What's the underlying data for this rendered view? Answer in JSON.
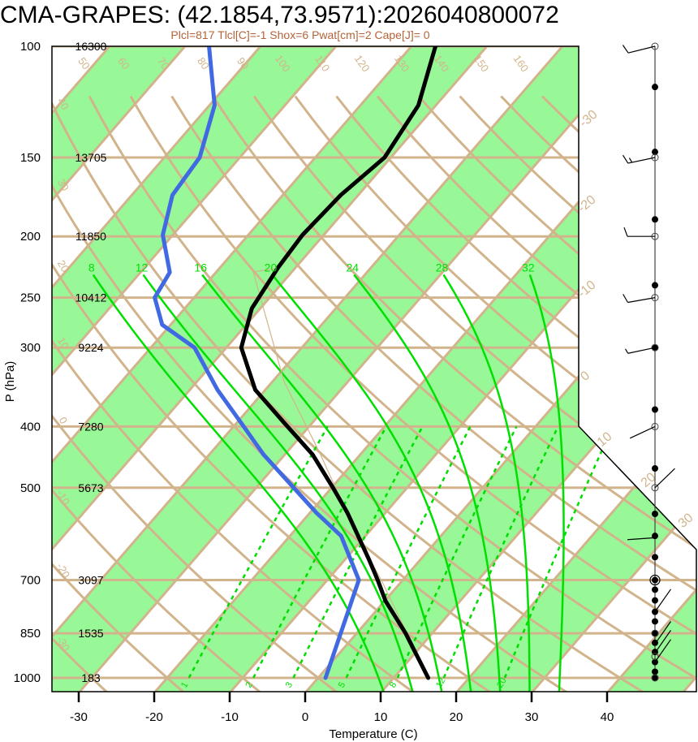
{
  "title": "CMA-GRAPES: (42.1854,73.9571):2026040800072",
  "subtitle": "Plcl=817 Tlcl[C]=-1 Shox=6 Pwat[cm]=2 Cape[J]= 0",
  "colors": {
    "band_green": "#98F898",
    "grid_tan": "#D2B48C",
    "moist_green": "#00E000",
    "temperature": "#000000",
    "dewpoint": "#4169E1",
    "label_brown": "#B5643A"
  },
  "chart_data": {
    "type": "line",
    "subtype": "skew-T log-P sounding",
    "title": "CMA-GRAPES: (42.1854,73.9571):2026040800072",
    "xlabel": "Temperature (C)",
    "ylabel": "P (hPa)",
    "x_ticks": [
      "-30",
      "-20",
      "-10",
      "0",
      "10",
      "20",
      "30",
      "40"
    ],
    "x_tick_values": [
      -30,
      -20,
      -10,
      0,
      10,
      20,
      30,
      40
    ],
    "y_ticks": [
      "100",
      "150",
      "200",
      "250",
      "300",
      "400",
      "500",
      "700",
      "850",
      "1000"
    ],
    "y_tick_values": [
      100,
      150,
      200,
      250,
      300,
      400,
      500,
      700,
      850,
      1000
    ],
    "ylim": [
      100,
      1050
    ],
    "heights_m": [
      "16300",
      "13705",
      "11850",
      "10412",
      "9224",
      "7280",
      "5673",
      "3097",
      "1535",
      "183"
    ],
    "series": [
      {
        "name": "temperature",
        "pressure": [
          1000,
          850,
          755,
          700,
          651,
          548,
          500,
          443,
          394,
          350,
          300,
          260,
          224,
          199,
          172,
          150,
          124,
          100
        ],
        "values": [
          16.3,
          8.2,
          1.8,
          -1.6,
          -5.0,
          -13.3,
          -18.1,
          -24.6,
          -32.1,
          -39.6,
          -46.3,
          -49.4,
          -50.6,
          -51.1,
          -50.6,
          -49.1,
          -50.6,
          -55.1
        ]
      },
      {
        "name": "dewpoint",
        "pressure": [
          1000,
          850,
          700,
          596,
          548,
          500,
          443,
          394,
          350,
          300,
          276,
          250,
          228,
          199,
          172,
          150,
          124,
          100
        ],
        "values": [
          2.7,
          -0.4,
          -4.1,
          -11.5,
          -17.4,
          -23.3,
          -31.1,
          -37.8,
          -44.6,
          -52.5,
          -59.4,
          -63.5,
          -64.4,
          -69.6,
          -72.9,
          -73.6,
          -77.6,
          -85.1
        ]
      }
    ],
    "dry_adiabat_labels_top": [
      "50",
      "60",
      "70",
      "80",
      "90",
      "100",
      "110",
      "120",
      "130",
      "140",
      "150",
      "160"
    ],
    "dry_adiabat_labels_left": [
      "40",
      "30",
      "20",
      "10",
      "0",
      "-10",
      "-20",
      "-30"
    ],
    "isotherm_labels_right": [
      "-30",
      "-20",
      "-10",
      "0",
      "10",
      "20",
      "30"
    ],
    "moist_adiabat_labels": [
      "8",
      "12",
      "16",
      "20",
      "24",
      "28",
      "32"
    ],
    "mixing_ratio_labels": [
      "1",
      "2",
      "3",
      "5",
      "8",
      "12",
      "20"
    ],
    "wind_levels_hPa": [
      116,
      147,
      188,
      239,
      300,
      376,
      466,
      550,
      596,
      644,
      700,
      725,
      754,
      786,
      814,
      850,
      880,
      910,
      944,
      978,
      1000
    ],
    "wind_circle_levels_hPa": [
      100,
      150,
      200,
      250,
      300,
      400,
      500,
      850,
      925,
      1000
    ],
    "wind_barbs": [
      {
        "p": 100,
        "dir": 256,
        "kt": 10
      },
      {
        "p": 150,
        "dir": 258,
        "kt": 15
      },
      {
        "p": 200,
        "dir": 270,
        "kt": 10
      },
      {
        "p": 250,
        "dir": 260,
        "kt": 10
      },
      {
        "p": 300,
        "dir": 258,
        "kt": 5
      },
      {
        "p": 400,
        "dir": 245,
        "kt": 0
      },
      {
        "p": 500,
        "dir": 46,
        "kt": 0
      },
      {
        "p": 600,
        "dir": 266,
        "kt": 0
      },
      {
        "p": 786,
        "dir": 35,
        "kt": 0
      },
      {
        "p": 884,
        "dir": 35,
        "kt": 0
      },
      {
        "p": 913,
        "dir": 35,
        "kt": 0
      },
      {
        "p": 944,
        "dir": 35,
        "kt": 0
      }
    ],
    "grid": true
  }
}
